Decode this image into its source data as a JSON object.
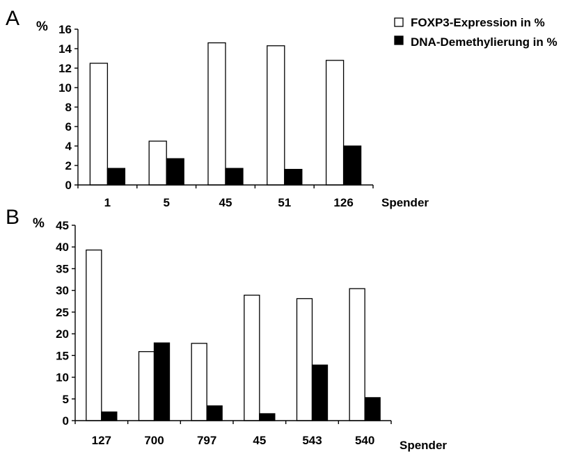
{
  "legend": {
    "items": [
      {
        "label": "FOXP3-Expression in %",
        "color": "#ffffff"
      },
      {
        "label": "DNA-Demethylierung in %",
        "color": "#000000"
      }
    ]
  },
  "chart_data": [
    {
      "type": "bar",
      "panel_label": "A",
      "ylabel": "%",
      "xlabel": "Spender",
      "ylim": [
        0,
        16
      ],
      "yticks": [
        0,
        2,
        4,
        6,
        8,
        10,
        12,
        14,
        16
      ],
      "categories": [
        "1",
        "5",
        "45",
        "51",
        "126"
      ],
      "series": [
        {
          "name": "FOXP3-Expression in %",
          "color": "#ffffff",
          "values": [
            12.5,
            4.5,
            14.6,
            14.3,
            12.8
          ]
        },
        {
          "name": "DNA-Demethylierung in %",
          "color": "#000000",
          "values": [
            1.7,
            2.7,
            1.7,
            1.6,
            4.0
          ]
        }
      ],
      "grid": false,
      "legend_position": "top-right"
    },
    {
      "type": "bar",
      "panel_label": "B",
      "ylabel": "%",
      "xlabel": "Spender",
      "ylim": [
        0,
        45
      ],
      "yticks": [
        0,
        5,
        10,
        15,
        20,
        25,
        30,
        35,
        40,
        45
      ],
      "categories": [
        "127",
        "700",
        "797",
        "45",
        "543",
        "540"
      ],
      "series": [
        {
          "name": "FOXP3-Expression in %",
          "color": "#ffffff",
          "values": [
            39.3,
            15.9,
            17.8,
            28.9,
            28.1,
            30.4
          ]
        },
        {
          "name": "DNA-Demethylierung in %",
          "color": "#000000",
          "values": [
            2.0,
            17.9,
            3.4,
            1.6,
            12.8,
            5.3
          ]
        }
      ],
      "grid": false
    }
  ]
}
